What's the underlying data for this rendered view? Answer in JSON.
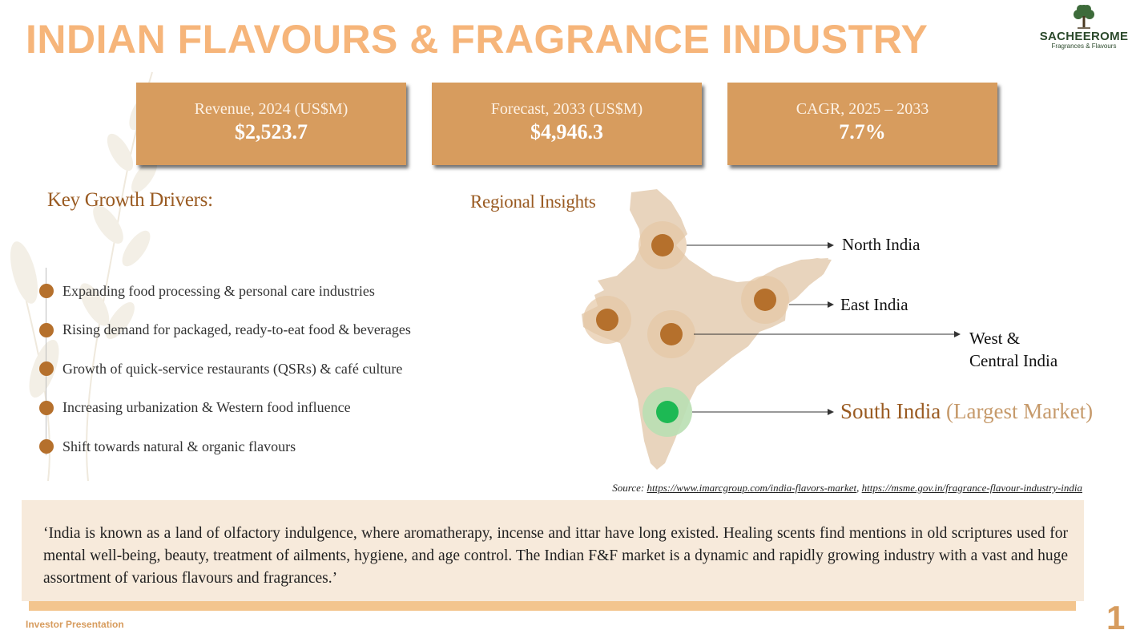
{
  "header": {
    "title": "INDIAN FLAVOURS & FRAGRANCE INDUSTRY"
  },
  "logo": {
    "name": "SACHEEROME",
    "tagline": "Fragrances & Flavours",
    "icon": "tree-icon"
  },
  "stats": [
    {
      "label": "Revenue, 2024 (US$M)",
      "value": "$2,523.7"
    },
    {
      "label": "Forecast, 2033 (US$M)",
      "value": "$4,946.3"
    },
    {
      "label": "CAGR, 2025 – 2033",
      "value": "7.7%"
    }
  ],
  "drivers": {
    "heading": "Key Growth Drivers:",
    "items": [
      "Expanding food processing & personal care industries",
      "Rising demand for packaged, ready-to-eat food & beverages",
      "Growth of quick-service restaurants (QSRs) & café culture",
      "Increasing urbanization & Western food influence",
      "Shift towards natural & organic flavours"
    ]
  },
  "regional": {
    "heading": "Regional Insights",
    "north": "North India",
    "east": "East India",
    "west_line1": "West &",
    "west_line2": "Central India",
    "south_name": "South India",
    "south_note": "(Largest Market)",
    "marker_color": "#b5702c",
    "highlight_color": "#1db954"
  },
  "source": {
    "prefix": "Source:",
    "link1": "https://www.imarcgroup.com/india-flavors-market",
    "separator": ",",
    "link2": "https://msme.gov.in/fragrance-flavour-industry-india"
  },
  "quote": "‘India is known as a land of olfactory indulgence, where aromatherapy, incense and ittar have long existed. Healing scents find mentions in old scriptures used for mental well-being, beauty, treatment of ailments, hygiene, and age control. The Indian F&F market is a dynamic and rapidly growing industry with a vast and huge assortment of various flavours and fragrances.’",
  "footer": {
    "label": "Investor Presentation",
    "page": "1"
  }
}
